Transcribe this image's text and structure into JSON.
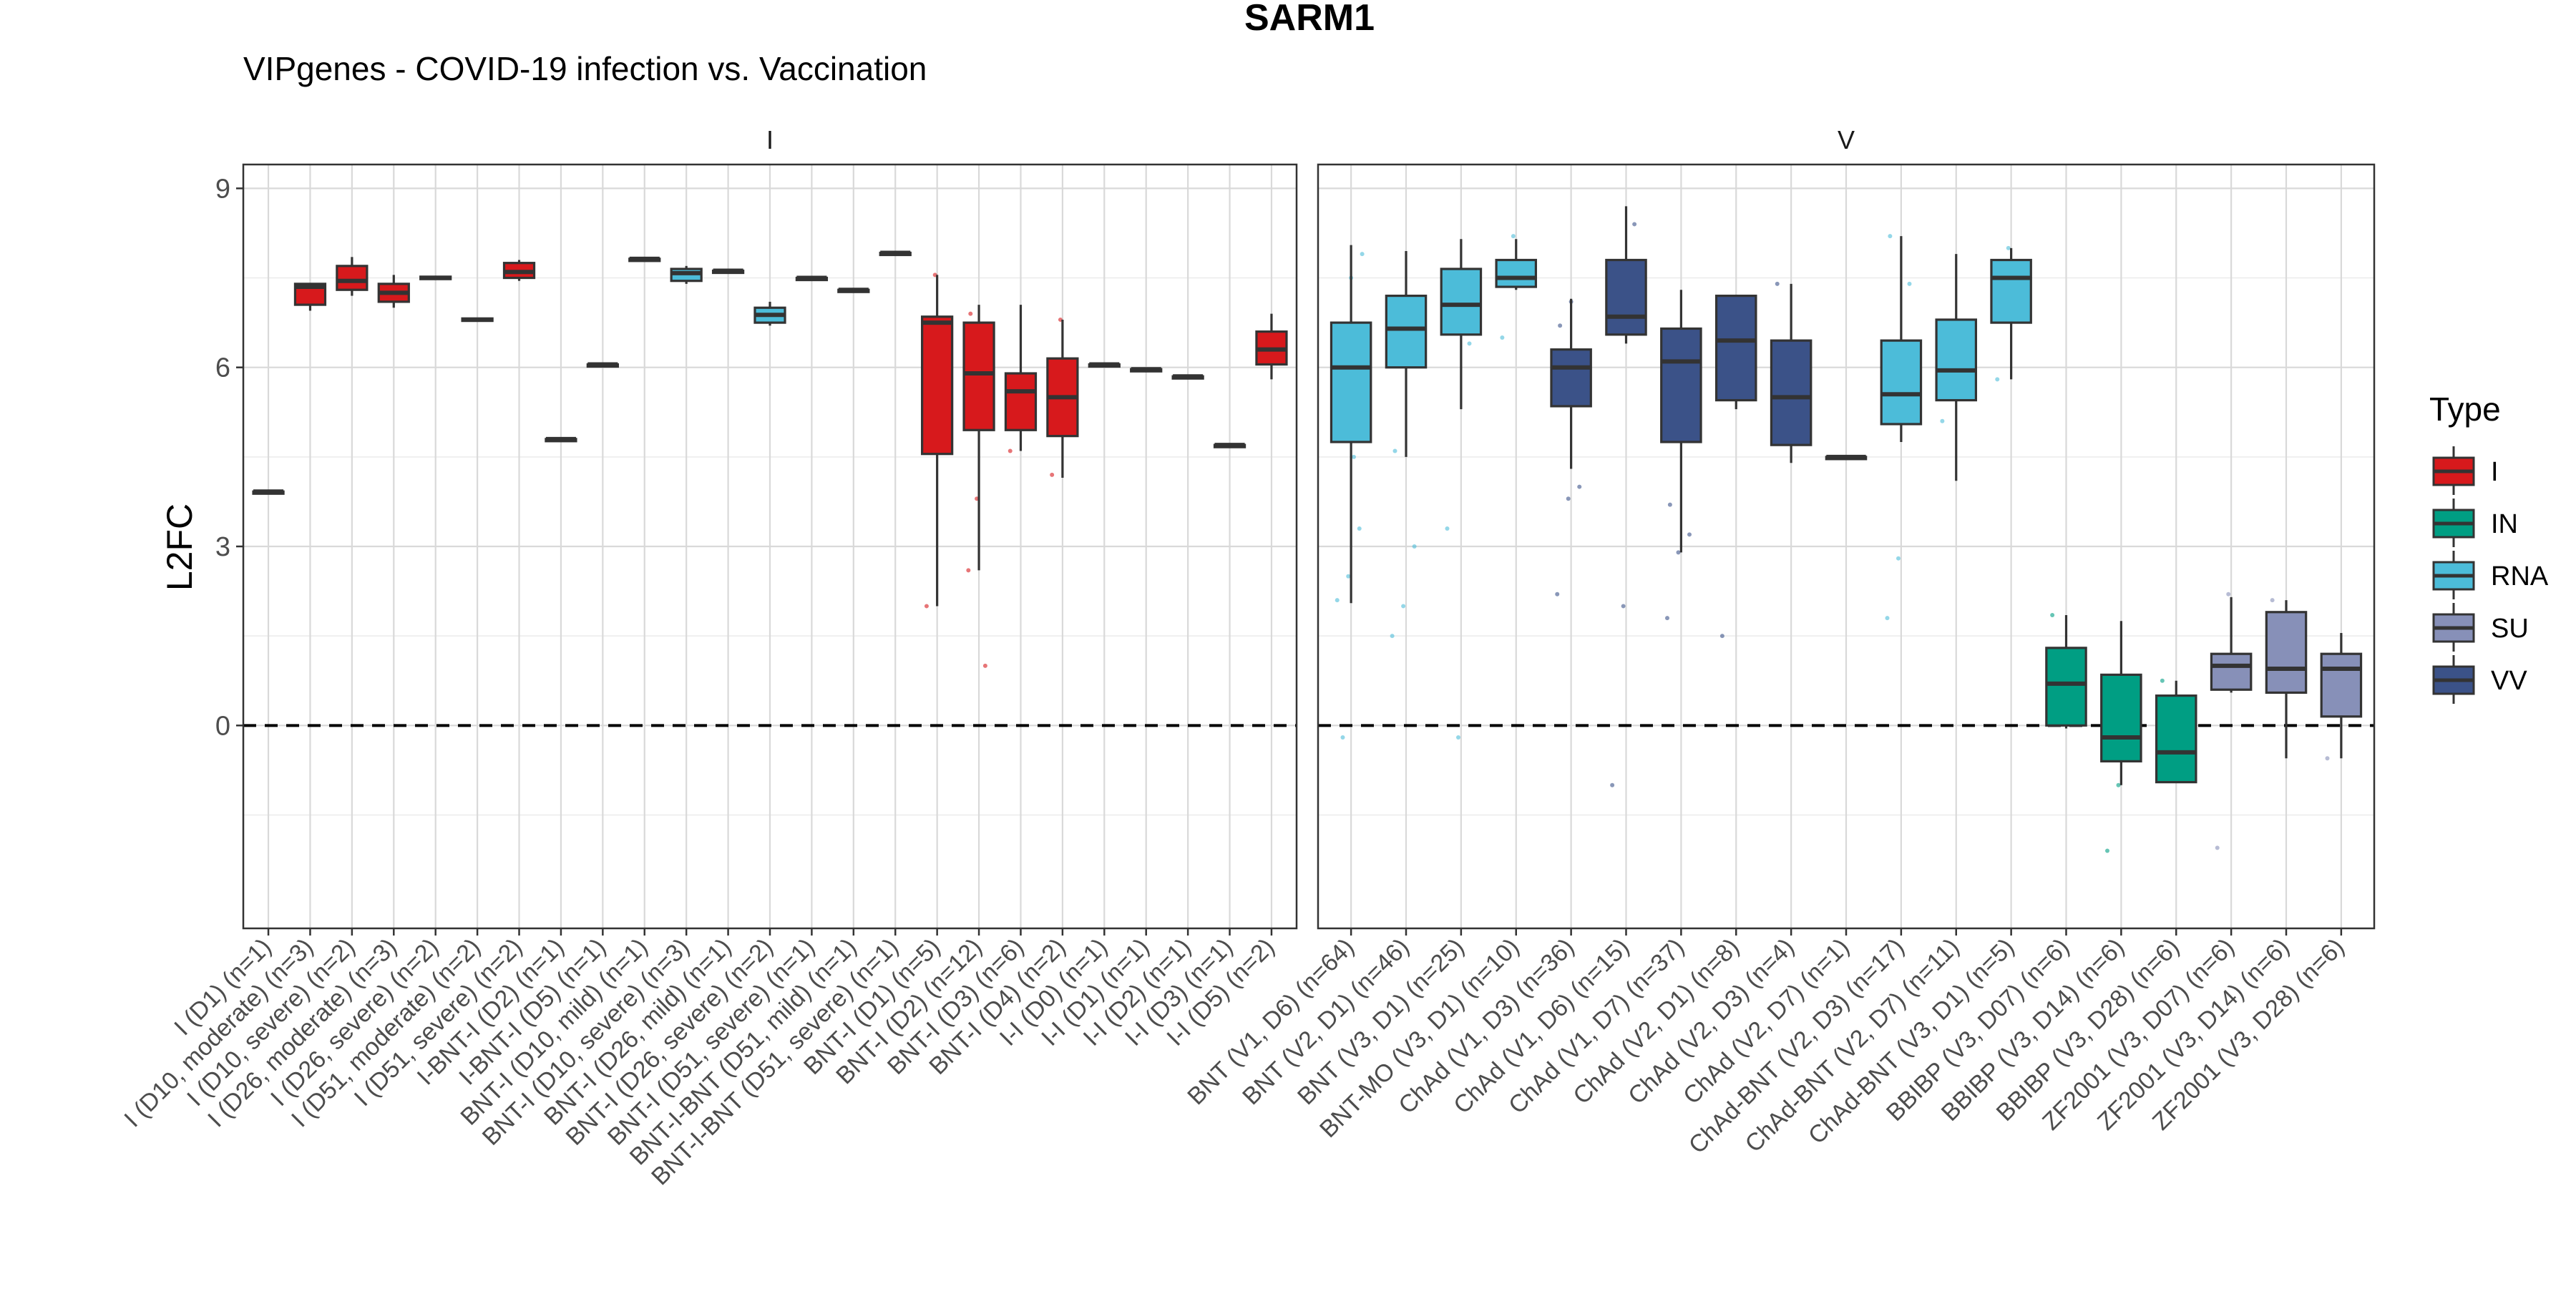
{
  "chart_data": {
    "type": "box",
    "title": "SARM1",
    "subtitle": "VIPgenes - COVID-19 infection vs. Vaccination",
    "ylabel": "L2FC",
    "xlabel": "",
    "ylim": [
      -3.4,
      9.4
    ],
    "yticks": [
      0,
      3,
      6,
      9
    ],
    "grid": true,
    "reference_line": 0,
    "legend": {
      "title": "Type",
      "position": "right",
      "entries": [
        {
          "key": "I",
          "label": "I",
          "color": "#D7191C"
        },
        {
          "key": "IN",
          "label": "IN",
          "color": "#009E83"
        },
        {
          "key": "RNA",
          "label": "RNA",
          "color": "#4CBCD9"
        },
        {
          "key": "SU",
          "label": "SU",
          "color": "#8790B8"
        },
        {
          "key": "VV",
          "label": "VV",
          "color": "#3B5288"
        }
      ]
    },
    "panels": [
      {
        "label": "I",
        "groups": [
          {
            "label": "I (D1) (n=1)",
            "type": "I",
            "min": 3.92,
            "q1": 3.92,
            "median": 3.92,
            "q3": 3.92,
            "max": 3.92
          },
          {
            "label": "I (D10, moderate) (n=3)",
            "type": "I",
            "min": 6.95,
            "q1": 7.05,
            "median": 7.35,
            "q3": 7.4,
            "max": 7.4
          },
          {
            "label": "I (D10, severe) (n=2)",
            "type": "I",
            "min": 7.2,
            "q1": 7.3,
            "median": 7.45,
            "q3": 7.7,
            "max": 7.85
          },
          {
            "label": "I (D26, moderate) (n=3)",
            "type": "I",
            "min": 7.0,
            "q1": 7.1,
            "median": 7.25,
            "q3": 7.4,
            "max": 7.55
          },
          {
            "label": "I (D26, severe) (n=2)",
            "type": "I",
            "min": 7.48,
            "q1": 7.48,
            "median": 7.5,
            "q3": 7.52,
            "max": 7.52
          },
          {
            "label": "I (D51, moderate) (n=2)",
            "type": "I",
            "min": 6.78,
            "q1": 6.78,
            "median": 6.8,
            "q3": 6.82,
            "max": 6.82
          },
          {
            "label": "I (D51, severe) (n=2)",
            "type": "I",
            "min": 7.45,
            "q1": 7.5,
            "median": 7.6,
            "q3": 7.75,
            "max": 7.8
          },
          {
            "label": "I-BNT-I (D2) (n=1)",
            "type": "I",
            "min": 4.8,
            "q1": 4.8,
            "median": 4.8,
            "q3": 4.8,
            "max": 4.8
          },
          {
            "label": "I-BNT-I (D5) (n=1)",
            "type": "I",
            "min": 6.05,
            "q1": 6.05,
            "median": 6.05,
            "q3": 6.05,
            "max": 6.05
          },
          {
            "label": "BNT-I (D10, mild) (n=1)",
            "type": "I",
            "min": 7.82,
            "q1": 7.82,
            "median": 7.82,
            "q3": 7.82,
            "max": 7.82
          },
          {
            "label": "BNT-I (D10, severe) (n=3)",
            "type": "RNA",
            "min": 7.4,
            "q1": 7.45,
            "median": 7.58,
            "q3": 7.65,
            "max": 7.7
          },
          {
            "label": "BNT-I (D26, mild) (n=1)",
            "type": "I",
            "min": 7.62,
            "q1": 7.62,
            "median": 7.62,
            "q3": 7.62,
            "max": 7.62
          },
          {
            "label": "BNT-I (D26, severe) (n=2)",
            "type": "RNA",
            "min": 6.7,
            "q1": 6.75,
            "median": 6.88,
            "q3": 7.0,
            "max": 7.1
          },
          {
            "label": "BNT-I (D51, severe) (n=1)",
            "type": "I",
            "min": 7.5,
            "q1": 7.5,
            "median": 7.5,
            "q3": 7.5,
            "max": 7.5
          },
          {
            "label": "BNT-I-BNT (D51, mild) (n=1)",
            "type": "I",
            "min": 7.3,
            "q1": 7.3,
            "median": 7.3,
            "q3": 7.3,
            "max": 7.3
          },
          {
            "label": "BNT-I-BNT (D51, severe) (n=1)",
            "type": "I",
            "min": 7.92,
            "q1": 7.92,
            "median": 7.92,
            "q3": 7.92,
            "max": 7.92
          },
          {
            "label": "BNT-I (D1) (n=5)",
            "type": "I",
            "min": 2.0,
            "q1": 4.55,
            "median": 6.75,
            "q3": 6.85,
            "max": 7.55,
            "points": [
              2.0,
              7.55
            ]
          },
          {
            "label": "BNT-I (D2) (n=12)",
            "type": "I",
            "min": 2.6,
            "q1": 4.95,
            "median": 5.9,
            "q3": 6.75,
            "max": 7.05,
            "points": [
              2.6,
              3.8,
              1.0,
              6.9
            ]
          },
          {
            "label": "BNT-I (D3) (n=6)",
            "type": "I",
            "min": 4.6,
            "q1": 4.95,
            "median": 5.6,
            "q3": 5.9,
            "max": 7.05,
            "points": [
              4.6,
              5.2
            ]
          },
          {
            "label": "BNT-I (D4) (n=2)",
            "type": "I",
            "min": 4.15,
            "q1": 4.85,
            "median": 5.5,
            "q3": 6.15,
            "max": 6.8,
            "points": [
              4.2,
              6.8
            ]
          },
          {
            "label": "I-I (D0) (n=1)",
            "type": "I",
            "min": 6.05,
            "q1": 6.05,
            "median": 6.05,
            "q3": 6.05,
            "max": 6.05
          },
          {
            "label": "I-I (D1) (n=1)",
            "type": "I",
            "min": 5.97,
            "q1": 5.97,
            "median": 5.97,
            "q3": 5.97,
            "max": 5.97
          },
          {
            "label": "I-I (D2) (n=1)",
            "type": "I",
            "min": 5.85,
            "q1": 5.85,
            "median": 5.85,
            "q3": 5.85,
            "max": 5.85
          },
          {
            "label": "I-I (D3) (n=1)",
            "type": "I",
            "min": 4.7,
            "q1": 4.7,
            "median": 4.7,
            "q3": 4.7,
            "max": 4.7
          },
          {
            "label": "I-I (D5) (n=2)",
            "type": "I",
            "min": 5.8,
            "q1": 6.05,
            "median": 6.3,
            "q3": 6.6,
            "max": 6.9
          }
        ]
      },
      {
        "label": "V",
        "groups": [
          {
            "label": "BNT (V1, D6) (n=64)",
            "type": "RNA",
            "min": 2.05,
            "q1": 4.75,
            "median": 6.0,
            "q3": 6.75,
            "max": 8.05,
            "points": [
              2.1,
              2.5,
              3.3,
              5.0,
              7.5,
              7.9,
              -0.2,
              4.5
            ]
          },
          {
            "label": "BNT (V2, D1) (n=46)",
            "type": "RNA",
            "min": 4.5,
            "q1": 6.0,
            "median": 6.65,
            "q3": 7.2,
            "max": 7.95,
            "points": [
              1.5,
              2.0,
              3.0,
              4.6
            ]
          },
          {
            "label": "BNT (V3, D1) (n=25)",
            "type": "RNA",
            "min": 5.3,
            "q1": 6.55,
            "median": 7.05,
            "q3": 7.65,
            "max": 8.15,
            "points": [
              3.3,
              -0.2,
              6.4
            ]
          },
          {
            "label": "BNT-MO (V3, D1) (n=10)",
            "type": "RNA",
            "min": 7.3,
            "q1": 7.35,
            "median": 7.5,
            "q3": 7.8,
            "max": 8.15,
            "points": [
              6.5,
              8.2
            ]
          },
          {
            "label": "ChAd (V1, D3) (n=36)",
            "type": "VV",
            "min": 4.3,
            "q1": 5.35,
            "median": 6.0,
            "q3": 6.3,
            "max": 7.15,
            "points": [
              2.2,
              3.8,
              4.0,
              6.7,
              7.1
            ]
          },
          {
            "label": "ChAd (V1, D6) (n=15)",
            "type": "VV",
            "min": 6.4,
            "q1": 6.55,
            "median": 6.85,
            "q3": 7.8,
            "max": 8.7,
            "points": [
              -1.0,
              2.0,
              8.4
            ]
          },
          {
            "label": "ChAd (V1, D7) (n=37)",
            "type": "VV",
            "min": 2.9,
            "q1": 4.75,
            "median": 6.1,
            "q3": 6.65,
            "max": 7.3,
            "points": [
              1.8,
              2.9,
              3.2,
              3.7
            ]
          },
          {
            "label": "ChAd (V2, D1) (n=8)",
            "type": "VV",
            "min": 5.3,
            "q1": 5.45,
            "median": 6.45,
            "q3": 7.2,
            "max": 7.2,
            "points": [
              1.5
            ]
          },
          {
            "label": "ChAd (V2, D3) (n=4)",
            "type": "VV",
            "min": 4.4,
            "q1": 4.7,
            "median": 5.5,
            "q3": 6.45,
            "max": 7.4,
            "points": [
              7.4
            ]
          },
          {
            "label": "ChAd (V2, D7) (n=1)",
            "type": "VV",
            "min": 4.5,
            "q1": 4.5,
            "median": 4.5,
            "q3": 4.5,
            "max": 4.5
          },
          {
            "label": "ChAd-BNT (V2, D3) (n=17)",
            "type": "RNA",
            "min": 4.75,
            "q1": 5.05,
            "median": 5.55,
            "q3": 6.45,
            "max": 8.2,
            "points": [
              1.8,
              2.8,
              7.4,
              8.2
            ]
          },
          {
            "label": "ChAd-BNT (V2, D7) (n=11)",
            "type": "RNA",
            "min": 4.1,
            "q1": 5.45,
            "median": 5.95,
            "q3": 6.8,
            "max": 7.9,
            "points": [
              5.1,
              6.4
            ]
          },
          {
            "label": "ChAd-BNT (V3, D1) (n=5)",
            "type": "RNA",
            "min": 5.8,
            "q1": 6.75,
            "median": 7.5,
            "q3": 7.8,
            "max": 8.0,
            "points": [
              5.8,
              8.0
            ]
          },
          {
            "label": "BBIBP (V3, D07) (n=6)",
            "type": "IN",
            "min": -0.05,
            "q1": 0.0,
            "median": 0.7,
            "q3": 1.3,
            "max": 1.85,
            "points": [
              1.85
            ]
          },
          {
            "label": "BBIBP (V3, D14) (n=6)",
            "type": "IN",
            "min": -1.0,
            "q1": -0.6,
            "median": -0.2,
            "q3": 0.85,
            "max": 1.75,
            "points": [
              -2.1,
              -1.0
            ]
          },
          {
            "label": "BBIBP (V3, D28) (n=6)",
            "type": "IN",
            "min": -0.95,
            "q1": -0.95,
            "median": -0.45,
            "q3": 0.5,
            "max": 0.75,
            "points": [
              0.75
            ]
          },
          {
            "label": "ZF2001 (V3, D07) (n=6)",
            "type": "SU",
            "min": 0.55,
            "q1": 0.6,
            "median": 1.0,
            "q3": 1.2,
            "max": 2.15,
            "points": [
              -2.05,
              2.2
            ]
          },
          {
            "label": "ZF2001 (V3, D14) (n=6)",
            "type": "SU",
            "min": -0.55,
            "q1": 0.55,
            "median": 0.95,
            "q3": 1.9,
            "max": 2.1,
            "points": [
              2.1
            ]
          },
          {
            "label": "ZF2001 (V3, D28) (n=6)",
            "type": "SU",
            "min": -0.55,
            "q1": 0.15,
            "median": 0.95,
            "q3": 1.2,
            "max": 1.55,
            "points": [
              -0.55
            ]
          }
        ]
      }
    ]
  }
}
